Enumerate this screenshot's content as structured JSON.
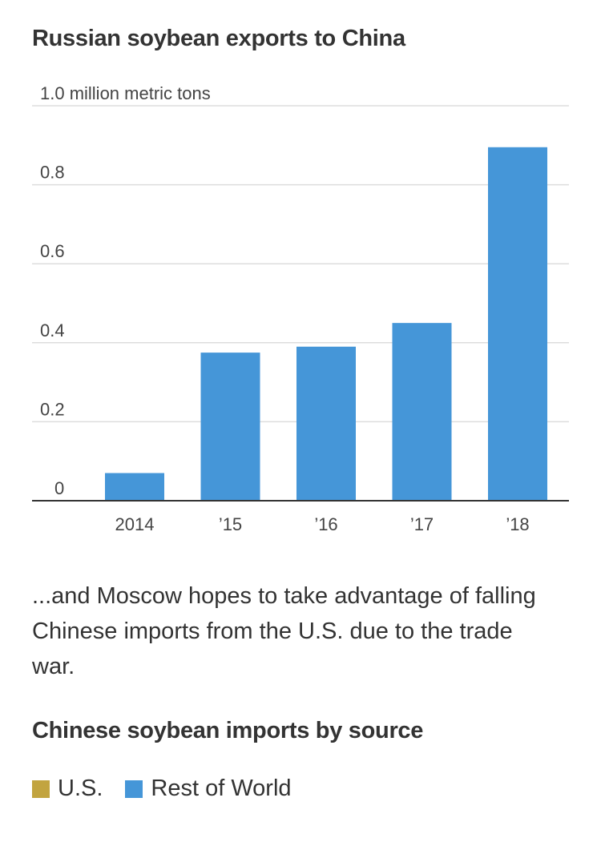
{
  "title": "Russian soybean exports to China",
  "caption": "...and Moscow hopes to take advantage of falling Chinese imports from the U.S. due to the trade war.",
  "subtitle": "Chinese soybean imports by source",
  "legend": [
    {
      "label": "U.S.",
      "color": "#c2a43f"
    },
    {
      "label": "Rest of World",
      "color": "#4596d8"
    }
  ],
  "colors": {
    "bar": "#4596d8",
    "grid": "#dddddd",
    "axis": "#333333"
  },
  "chart_data": {
    "type": "bar",
    "title": "Russian soybean exports to China",
    "categories": [
      "2014",
      "’15",
      "’16",
      "’17",
      "’18"
    ],
    "values": [
      0.07,
      0.375,
      0.39,
      0.45,
      0.895
    ],
    "ylabel": "",
    "ylim": [
      0,
      1.0
    ],
    "yticks": [
      {
        "value": 1.0,
        "label": "1.0 million metric tons"
      },
      {
        "value": 0.8,
        "label": "0.8"
      },
      {
        "value": 0.6,
        "label": "0.6"
      },
      {
        "value": 0.4,
        "label": "0.4"
      },
      {
        "value": 0.2,
        "label": "0.2"
      },
      {
        "value": 0,
        "label": "0"
      }
    ],
    "grid": true
  }
}
